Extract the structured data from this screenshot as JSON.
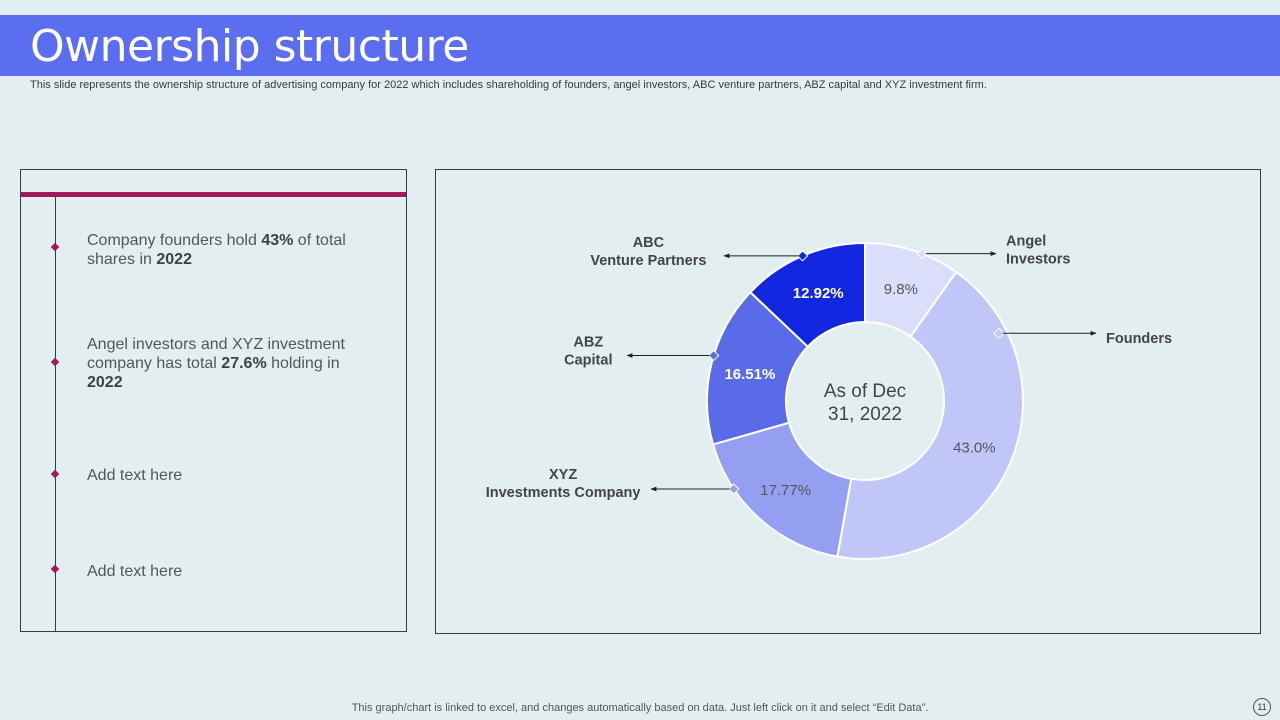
{
  "header": {
    "title": "Ownership structure",
    "subtitle": "This slide represents the ownership structure of advertising company for 2022 which includes shareholding of founders, angel investors, ABC venture  partners, ABZ capital and XYZ  investment firm."
  },
  "points": [
    {
      "pre": "Company founders hold ",
      "bold1": "43%",
      "mid": " of total shares in ",
      "bold2": "2022",
      "post": ""
    },
    {
      "pre": "Angel investors and XYZ  investment company has total ",
      "bold1": "27.6%",
      "mid": " holding in ",
      "bold2": "2022",
      "post": ""
    },
    {
      "pre": "Add text here",
      "bold1": "",
      "mid": "",
      "bold2": "",
      "post": ""
    },
    {
      "pre": "Add text here",
      "bold1": "",
      "mid": "",
      "bold2": "",
      "post": ""
    }
  ],
  "chart_data": {
    "type": "pie",
    "center_label": [
      "As of Dec",
      "31, 2022"
    ],
    "slices": [
      {
        "name": "Angel Investors",
        "label_lines": [
          "Angel",
          "Investors"
        ],
        "value": 9.8,
        "value_label": "9.8%",
        "color": "#dadefb"
      },
      {
        "name": "Founders",
        "label_lines": [
          "Founders"
        ],
        "value": 43.0,
        "value_label": "43.0%",
        "color": "#c0c6f8"
      },
      {
        "name": "XYZ Investments Company",
        "label_lines": [
          "XYZ",
          "Investments Company"
        ],
        "value": 17.77,
        "value_label": "17.77%",
        "color": "#959ff2"
      },
      {
        "name": "ABZ Capital",
        "label_lines": [
          "ABZ",
          "Capital"
        ],
        "value": 16.51,
        "value_label": "16.51%",
        "color": "#5a6be8"
      },
      {
        "name": "ABC Venture Partners",
        "label_lines": [
          "ABC",
          "Venture Partners"
        ],
        "value": 12.92,
        "value_label": "12.92%",
        "color": "#1326e0"
      }
    ]
  },
  "footer": {
    "note": "This graph/chart is linked to excel,  and changes automatically based on data. Just left click on it and select “Edit Data”.",
    "page_number": "11"
  }
}
